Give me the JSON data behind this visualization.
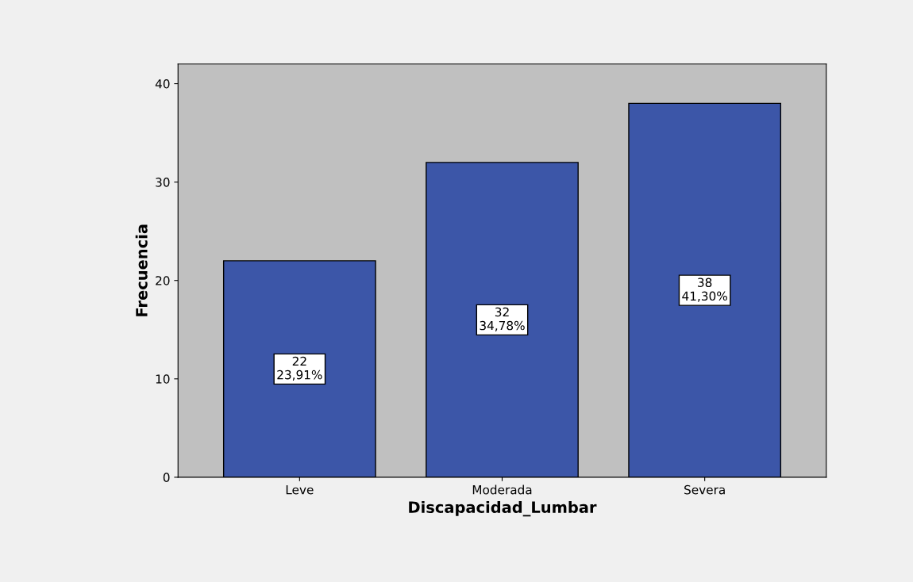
{
  "chart_data": {
    "type": "bar",
    "xlabel": "Discapacidad_Lumbar",
    "ylabel": "Frecuencia",
    "categories": [
      "Leve",
      "Moderada",
      "Severa"
    ],
    "values": [
      22,
      32,
      38
    ],
    "value_labels": [
      "22\n23,91%",
      "32\n34,78%",
      "38\n41,30%"
    ],
    "color": "#3c56a8",
    "ylim": [
      0,
      42
    ],
    "yticks": [
      0,
      10,
      20,
      30,
      40
    ]
  }
}
